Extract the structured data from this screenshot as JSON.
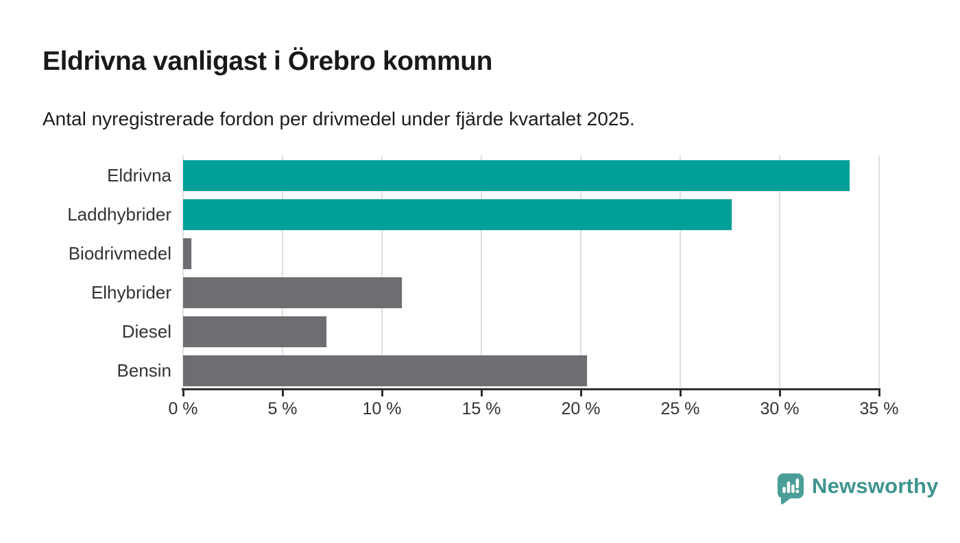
{
  "header": {
    "title": "Eldrivna vanligast i Örebro kommun",
    "subtitle": "Antal nyregistrerade fordon per drivmedel under fjärde kvartalet 2025."
  },
  "chart_data": {
    "type": "bar",
    "orientation": "horizontal",
    "title": "Eldrivna vanligast i Örebro kommun",
    "subtitle": "Antal nyregistrerade fordon per drivmedel under fjärde kvartalet 2025.",
    "categories": [
      "Eldrivna",
      "Laddhybrider",
      "Biodrivmedel",
      "Elhybrider",
      "Diesel",
      "Bensin"
    ],
    "values": [
      33.5,
      27.6,
      0.4,
      11.0,
      7.2,
      20.3
    ],
    "unit": "%",
    "bar_colors": [
      "#00a099",
      "#00a099",
      "#6d6d72",
      "#6d6d72",
      "#6d6d72",
      "#6d6d72"
    ],
    "highlight_color": "#00a099",
    "default_color": "#6d6d72",
    "xlabel": "",
    "ylabel": "",
    "xlim": [
      0,
      35
    ],
    "x_ticks": [
      0,
      5,
      10,
      15,
      20,
      25,
      30,
      35
    ],
    "x_tick_labels": [
      "0 %",
      "5 %",
      "10 %",
      "15 %",
      "20 %",
      "25 %",
      "30 %",
      "35 %"
    ],
    "grid": true,
    "gridline_color": "#dedede",
    "axis_color": "#2e2e2e",
    "label_color": "#333333",
    "legend": "none"
  },
  "footer": {
    "brand": "Newsworthy",
    "brand_color": "#3d948e",
    "icon_color": "#4a9e98",
    "logo_icon": "newsworthy-bar-chart-speech-bubble"
  }
}
